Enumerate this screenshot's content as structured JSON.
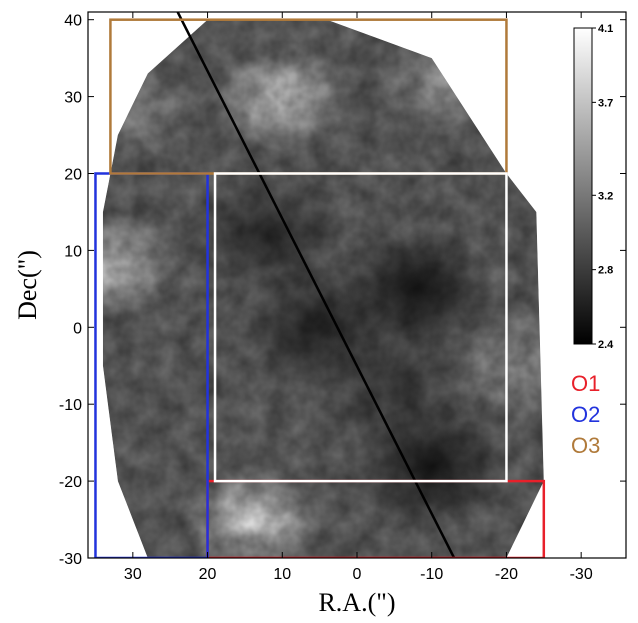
{
  "chart_data": {
    "type": "heatmap",
    "xlabel": "R.A.(\")",
    "ylabel": "Dec(\")",
    "xlim": [
      36,
      -36
    ],
    "ylim": [
      -30,
      41
    ],
    "x_ticks": [
      30,
      20,
      10,
      0,
      -10,
      -20,
      -30
    ],
    "y_ticks": [
      40,
      30,
      20,
      10,
      0,
      -10,
      -20,
      -30
    ],
    "x_tick_labels": [
      "30",
      "20",
      "10",
      "0",
      "-10",
      "-20",
      "-30"
    ],
    "y_tick_labels": [
      "40",
      "30",
      "20",
      "10",
      "0",
      "-10",
      "-20",
      "-30"
    ],
    "colorbar": {
      "min": 2.4,
      "max": 4.1,
      "ticks": [
        4.1,
        3.7,
        3.2,
        2.8,
        2.4
      ],
      "tick_labels": [
        "4.1",
        "3.7",
        "3.2",
        "2.8",
        "2.4"
      ],
      "colormap": "grayscale"
    },
    "field_outline": [
      [
        20,
        40
      ],
      [
        4,
        40
      ],
      [
        -10,
        35
      ],
      [
        -20,
        20
      ],
      [
        -24,
        15
      ],
      [
        -25,
        -20
      ],
      [
        -20,
        -30
      ],
      [
        28,
        -30
      ],
      [
        32,
        -20
      ],
      [
        34,
        -5
      ],
      [
        34,
        15
      ],
      [
        32,
        25
      ],
      [
        28,
        33
      ]
    ],
    "bright_regions": [
      {
        "ra": 10,
        "dec": 30,
        "value": 4.0
      },
      {
        "ra": 33,
        "dec": 8,
        "value": 3.9
      },
      {
        "ra": 14,
        "dec": -25,
        "value": 4.1
      },
      {
        "ra": -12,
        "dec": 32,
        "value": 3.6
      },
      {
        "ra": 30,
        "dec": 28,
        "value": 3.5
      },
      {
        "ra": -22,
        "dec": -5,
        "value": 3.6
      }
    ],
    "dark_regions": [
      {
        "ra": 5,
        "dec": 0,
        "value": 2.6
      },
      {
        "ra": -8,
        "dec": 5,
        "value": 2.5
      },
      {
        "ra": 12,
        "dec": 12,
        "value": 2.7
      },
      {
        "ra": -10,
        "dec": -18,
        "value": 2.5
      },
      {
        "ra": -5,
        "dec": -8,
        "value": 2.8
      }
    ],
    "line": {
      "from": [
        24,
        41
      ],
      "to": [
        -13,
        -30
      ],
      "color": "#000000"
    },
    "rectangles": [
      {
        "name": "O1",
        "color": "#e8202a",
        "ra": [
          20,
          -25
        ],
        "dec": [
          -30,
          -20
        ]
      },
      {
        "name": "O2",
        "color": "#2233dd",
        "ra": [
          35,
          20
        ],
        "dec": [
          -30,
          20
        ]
      },
      {
        "name": "O3",
        "color": "#b07a3a",
        "ra": [
          33,
          -20
        ],
        "dec": [
          20,
          40
        ]
      },
      {
        "name": "",
        "color": "#ffffff",
        "ra": [
          19,
          -20
        ],
        "dec": [
          -20,
          20
        ]
      }
    ],
    "legend": {
      "placement": "right",
      "entries": [
        {
          "label": "O1",
          "color": "#e8202a"
        },
        {
          "label": "O2",
          "color": "#2233dd"
        },
        {
          "label": "O3",
          "color": "#b07a3a"
        }
      ]
    }
  }
}
